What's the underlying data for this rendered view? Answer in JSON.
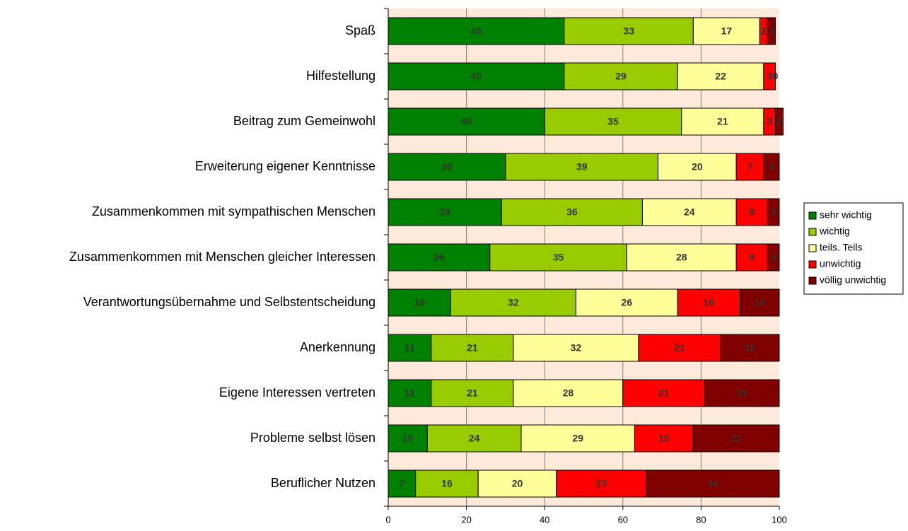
{
  "chart_data": {
    "type": "stacked-bar",
    "orientation": "horizontal",
    "categories": [
      "Spaß",
      "Hilfestellung",
      "Beitrag zum Gemeinwohl",
      "Erweiterung eigener Kenntnisse",
      "Zusammenkommen mit sympathischen Menschen",
      "Zusammenkommen mit Menschen gleicher Interessen",
      "Verantwortungsübernahme und Selbstentscheidung",
      "Anerkennung",
      "Eigene Interessen vertreten",
      "Probleme selbst lösen",
      "Beruflicher Nutzen"
    ],
    "series": [
      {
        "name": "sehr wichtig",
        "color": "#008000",
        "values": [
          45,
          45,
          40,
          30,
          29,
          26,
          16,
          11,
          11,
          10,
          7
        ]
      },
      {
        "name": "wichtig",
        "color": "#99cc00",
        "values": [
          33,
          29,
          35,
          39,
          36,
          35,
          32,
          21,
          21,
          24,
          16
        ]
      },
      {
        "name": "teils. Teils",
        "color": "#ffff99",
        "values": [
          17,
          22,
          21,
          20,
          24,
          28,
          26,
          32,
          28,
          29,
          20
        ]
      },
      {
        "name": "unwichtig",
        "color": "#ff0000",
        "values": [
          2,
          3,
          3,
          7,
          8,
          8,
          16,
          21,
          21,
          15,
          23
        ]
      },
      {
        "name": "völlig unwichtig",
        "color": "#800000",
        "values": [
          2,
          0,
          2,
          4,
          3,
          3,
          10,
          15,
          19,
          22,
          34
        ]
      }
    ],
    "xlim": [
      0,
      100
    ],
    "xticks": [
      0,
      20,
      40,
      60,
      80,
      100
    ],
    "grid": true,
    "legend": "right"
  }
}
